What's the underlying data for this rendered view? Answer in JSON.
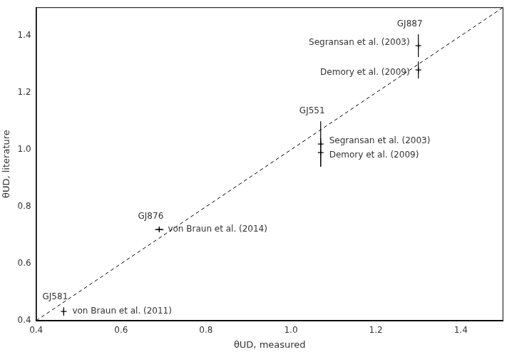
{
  "chart_data": {
    "type": "scatter",
    "xlabel": "θUD, measured",
    "ylabel": "θUD, literature",
    "xlim": [
      0.4,
      1.5
    ],
    "ylim": [
      0.4,
      1.5
    ],
    "xticks": [
      0.4,
      0.6,
      0.8,
      {
        "value": 1.0,
        "label": "1.0"
      },
      1.2,
      1.4
    ],
    "yticks": [
      0.4,
      0.6,
      0.8,
      {
        "value": 1.0,
        "label": "1.0"
      },
      1.2,
      1.4
    ],
    "grid": false,
    "color": "#000000",
    "marker": "cross",
    "points": [
      {
        "star": "GJ887",
        "reference": "Segransan et al. (2003)",
        "x": 1.3,
        "y": 1.365,
        "y_error": 0.04
      },
      {
        "star": "GJ887",
        "reference": "Demory et al. (2009)",
        "x": 1.3,
        "y": 1.28,
        "y_error": 0.03
      },
      {
        "star": "GJ551",
        "reference": "Segransan et al. (2003)",
        "x": 1.07,
        "y": 1.02,
        "y_error": 0.08
      },
      {
        "star": "GJ551",
        "reference": "Demory et al. (2009)",
        "x": 1.07,
        "y": 0.99,
        "y_error": 0.05
      },
      {
        "star": "GJ876",
        "reference": "von Braun et al. (2014)",
        "x": 0.69,
        "y": 0.72,
        "y_error": 0.01,
        "x_error": 0.01
      },
      {
        "star": "GJ581",
        "reference": "von Braun et al. (2011)",
        "x": 0.465,
        "y": 0.432,
        "y_error": 0.015
      }
    ],
    "identity_line": {
      "x": [
        0.4,
        1.5
      ],
      "y": [
        0.4,
        1.5
      ],
      "line_style": "dashed"
    }
  }
}
